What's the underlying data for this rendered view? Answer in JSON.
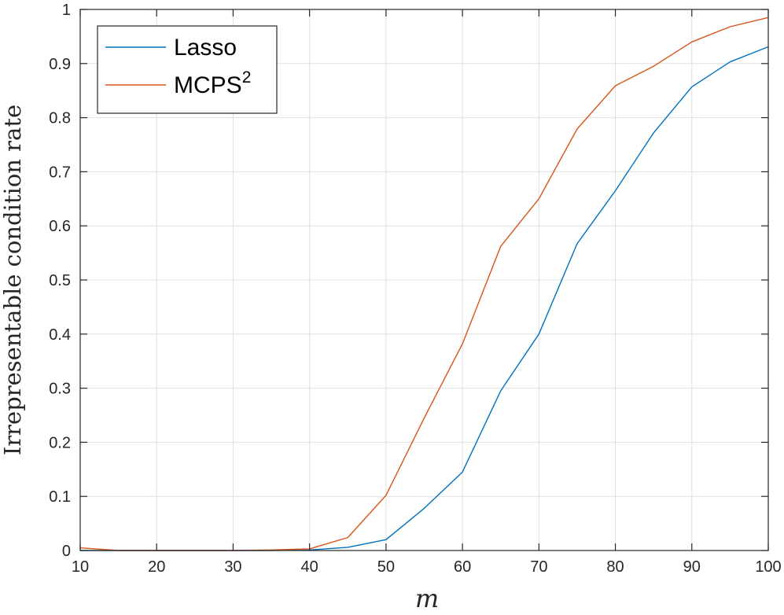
{
  "chart_data": {
    "type": "line",
    "title": "",
    "xlabel": "m",
    "ylabel": "Irrepresentable condition rate",
    "xlim": [
      10,
      100
    ],
    "ylim": [
      0,
      1
    ],
    "grid": true,
    "legend_position": "top-left",
    "x": [
      10,
      15,
      20,
      25,
      30,
      35,
      40,
      45,
      50,
      55,
      60,
      65,
      70,
      75,
      80,
      85,
      90,
      95,
      100
    ],
    "x_ticks": [
      "10",
      "20",
      "30",
      "40",
      "50",
      "60",
      "70",
      "80",
      "90",
      "100"
    ],
    "y_ticks": [
      "0",
      "0.1",
      "0.2",
      "0.3",
      "0.4",
      "0.5",
      "0.6",
      "0.7",
      "0.8",
      "0.9",
      "1"
    ],
    "series": [
      {
        "name": "Lasso",
        "color": "#0072BD",
        "values": [
          0,
          0,
          0,
          0,
          0,
          0,
          0.001,
          0.006,
          0.02,
          0.078,
          0.145,
          0.295,
          0.4,
          0.567,
          0.665,
          0.772,
          0.857,
          0.903,
          0.931
        ]
      },
      {
        "name": "MCPS",
        "name_superscript": "2",
        "color": "#D95319",
        "values": [
          0.005,
          0,
          0,
          0,
          0,
          0.001,
          0.003,
          0.024,
          0.102,
          0.245,
          0.382,
          0.562,
          0.65,
          0.779,
          0.859,
          0.895,
          0.94,
          0.968,
          0.985
        ]
      }
    ]
  }
}
